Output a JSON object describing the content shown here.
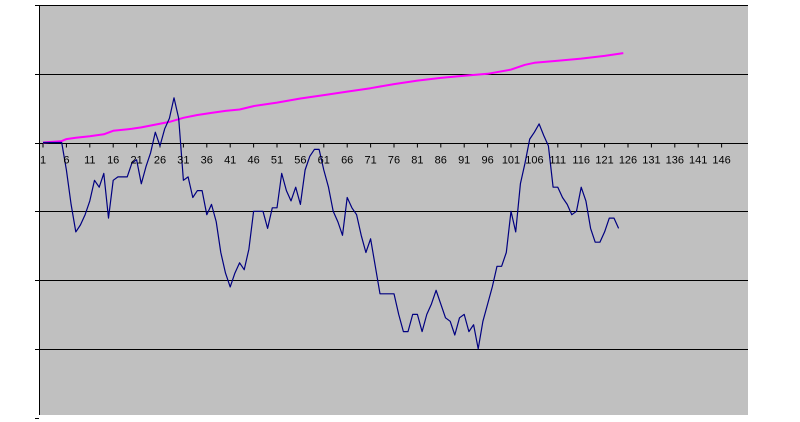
{
  "chart_data": {
    "type": "line",
    "title": "",
    "xlabel": "",
    "ylabel": "",
    "colors": {
      "plot_background": "#c0c0c0",
      "gridline": "#000000",
      "axis": "#000000"
    },
    "grid": true,
    "x": {
      "min": 1,
      "max": 150,
      "ticks": [
        1,
        6,
        11,
        16,
        21,
        26,
        31,
        36,
        41,
        46,
        51,
        56,
        61,
        66,
        71,
        76,
        81,
        86,
        91,
        96,
        101,
        106,
        111,
        116,
        121,
        126,
        131,
        136,
        141,
        146
      ]
    },
    "y": {
      "min": -4,
      "max": 2,
      "gridlines": [
        -3,
        -2,
        -1,
        1,
        2
      ],
      "ticks": [
        -4,
        -3,
        -2,
        -1,
        0,
        1,
        2
      ]
    },
    "series": [
      {
        "color": "#ff00ff",
        "points": [
          [
            1,
            0.0
          ],
          [
            5,
            0.02
          ],
          [
            6,
            0.05
          ],
          [
            8,
            0.07
          ],
          [
            11,
            0.09
          ],
          [
            14,
            0.12
          ],
          [
            16,
            0.17
          ],
          [
            20,
            0.2
          ],
          [
            22,
            0.22
          ],
          [
            25,
            0.26
          ],
          [
            28,
            0.3
          ],
          [
            31,
            0.36
          ],
          [
            34,
            0.4
          ],
          [
            37,
            0.43
          ],
          [
            40,
            0.46
          ],
          [
            43,
            0.48
          ],
          [
            46,
            0.53
          ],
          [
            51,
            0.58
          ],
          [
            56,
            0.64
          ],
          [
            61,
            0.69
          ],
          [
            66,
            0.74
          ],
          [
            71,
            0.79
          ],
          [
            76,
            0.85
          ],
          [
            81,
            0.9
          ],
          [
            86,
            0.94
          ],
          [
            91,
            0.97
          ],
          [
            96,
            1.0
          ],
          [
            101,
            1.06
          ],
          [
            104,
            1.13
          ],
          [
            106,
            1.16
          ],
          [
            111,
            1.19
          ],
          [
            116,
            1.22
          ],
          [
            121,
            1.26
          ],
          [
            125,
            1.3
          ]
        ]
      },
      {
        "color": "#000080",
        "points": [
          [
            1,
            0.0
          ],
          [
            2,
            0.0
          ],
          [
            3,
            0.0
          ],
          [
            4,
            0.0
          ],
          [
            5,
            0.0
          ],
          [
            6,
            -0.4
          ],
          [
            7,
            -0.9
          ],
          [
            8,
            -1.3
          ],
          [
            9,
            -1.2
          ],
          [
            10,
            -1.05
          ],
          [
            11,
            -0.85
          ],
          [
            12,
            -0.55
          ],
          [
            13,
            -0.65
          ],
          [
            14,
            -0.45
          ],
          [
            15,
            -1.1
          ],
          [
            16,
            -0.55
          ],
          [
            17,
            -0.5
          ],
          [
            18,
            -0.5
          ],
          [
            19,
            -0.5
          ],
          [
            20,
            -0.3
          ],
          [
            21,
            -0.25
          ],
          [
            22,
            -0.6
          ],
          [
            23,
            -0.35
          ],
          [
            24,
            -0.15
          ],
          [
            25,
            0.15
          ],
          [
            26,
            -0.05
          ],
          [
            27,
            0.2
          ],
          [
            28,
            0.35
          ],
          [
            29,
            0.65
          ],
          [
            30,
            0.35
          ],
          [
            31,
            -0.55
          ],
          [
            32,
            -0.5
          ],
          [
            33,
            -0.8
          ],
          [
            34,
            -0.7
          ],
          [
            35,
            -0.7
          ],
          [
            36,
            -1.05
          ],
          [
            37,
            -0.9
          ],
          [
            38,
            -1.15
          ],
          [
            39,
            -1.6
          ],
          [
            40,
            -1.9
          ],
          [
            41,
            -2.1
          ],
          [
            42,
            -1.9
          ],
          [
            43,
            -1.75
          ],
          [
            44,
            -1.85
          ],
          [
            45,
            -1.55
          ],
          [
            46,
            -1.0
          ],
          [
            47,
            -1.0
          ],
          [
            48,
            -1.0
          ],
          [
            49,
            -1.25
          ],
          [
            50,
            -0.95
          ],
          [
            51,
            -0.95
          ],
          [
            52,
            -0.45
          ],
          [
            53,
            -0.7
          ],
          [
            54,
            -0.85
          ],
          [
            55,
            -0.65
          ],
          [
            56,
            -0.9
          ],
          [
            57,
            -0.4
          ],
          [
            58,
            -0.2
          ],
          [
            59,
            -0.1
          ],
          [
            60,
            -0.1
          ],
          [
            61,
            -0.4
          ],
          [
            62,
            -0.65
          ],
          [
            63,
            -1.0
          ],
          [
            64,
            -1.15
          ],
          [
            65,
            -1.35
          ],
          [
            66,
            -0.8
          ],
          [
            67,
            -0.95
          ],
          [
            68,
            -1.05
          ],
          [
            69,
            -1.35
          ],
          [
            70,
            -1.6
          ],
          [
            71,
            -1.4
          ],
          [
            72,
            -1.8
          ],
          [
            73,
            -2.2
          ],
          [
            74,
            -2.2
          ],
          [
            75,
            -2.2
          ],
          [
            76,
            -2.2
          ],
          [
            77,
            -2.5
          ],
          [
            78,
            -2.75
          ],
          [
            79,
            -2.75
          ],
          [
            80,
            -2.5
          ],
          [
            81,
            -2.5
          ],
          [
            82,
            -2.75
          ],
          [
            83,
            -2.5
          ],
          [
            84,
            -2.35
          ],
          [
            85,
            -2.15
          ],
          [
            86,
            -2.35
          ],
          [
            87,
            -2.55
          ],
          [
            88,
            -2.6
          ],
          [
            89,
            -2.8
          ],
          [
            90,
            -2.55
          ],
          [
            91,
            -2.5
          ],
          [
            92,
            -2.75
          ],
          [
            93,
            -2.65
          ],
          [
            94,
            -3.0
          ],
          [
            95,
            -2.6
          ],
          [
            96,
            -2.35
          ],
          [
            97,
            -2.1
          ],
          [
            98,
            -1.8
          ],
          [
            99,
            -1.8
          ],
          [
            100,
            -1.6
          ],
          [
            101,
            -1.0
          ],
          [
            102,
            -1.3
          ],
          [
            103,
            -0.6
          ],
          [
            104,
            -0.3
          ],
          [
            105,
            0.05
          ],
          [
            106,
            0.15
          ],
          [
            107,
            0.27
          ],
          [
            108,
            0.1
          ],
          [
            109,
            -0.05
          ],
          [
            110,
            -0.65
          ],
          [
            111,
            -0.65
          ],
          [
            112,
            -0.8
          ],
          [
            113,
            -0.9
          ],
          [
            114,
            -1.05
          ],
          [
            115,
            -1.0
          ],
          [
            116,
            -0.65
          ],
          [
            117,
            -0.85
          ],
          [
            118,
            -1.25
          ],
          [
            119,
            -1.45
          ],
          [
            120,
            -1.45
          ],
          [
            121,
            -1.3
          ],
          [
            122,
            -1.1
          ],
          [
            123,
            -1.1
          ],
          [
            124,
            -1.25
          ]
        ]
      }
    ]
  }
}
